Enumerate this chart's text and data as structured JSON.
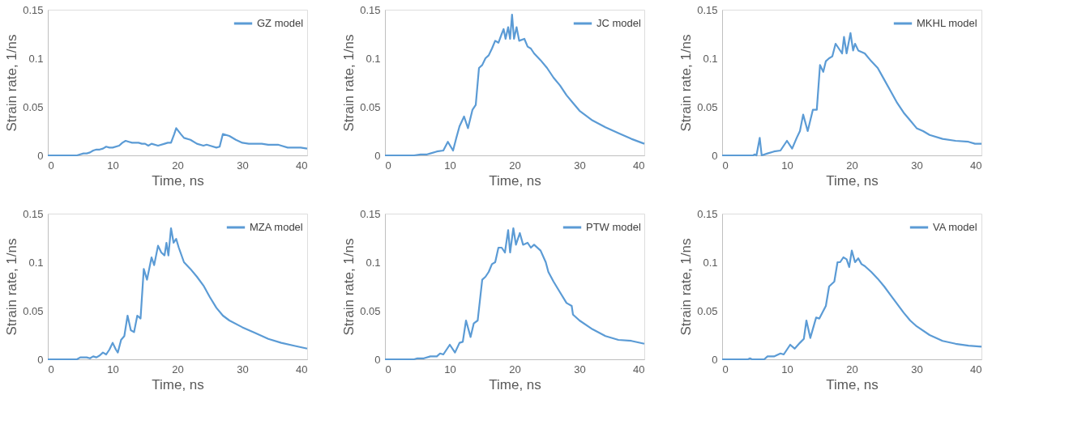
{
  "chart_data": [
    {
      "type": "line",
      "xlabel": "Time, ns",
      "ylabel": "Strain rate, 1/ns",
      "xlim": [
        0,
        40
      ],
      "ylim": [
        0,
        0.15
      ],
      "xticks": [
        0,
        10,
        20,
        30,
        40
      ],
      "yticks": [
        0,
        0.05,
        0.1,
        0.15
      ],
      "legend": "top right",
      "series": [
        {
          "name": "GZ model",
          "color": "#5b9bd5",
          "x": [
            0,
            4.5,
            5,
            5.5,
            6,
            6.5,
            7,
            7.5,
            8,
            8.5,
            9,
            9.5,
            10,
            11,
            11.5,
            12,
            12.5,
            13,
            14,
            14.5,
            15,
            15.5,
            16,
            17,
            18,
            18.5,
            19,
            19.5,
            19.8,
            20.5,
            21,
            22,
            23,
            24,
            24.5,
            25,
            26,
            26.5,
            27,
            28,
            29,
            30,
            31,
            32,
            33,
            34,
            35,
            35.5,
            36,
            37,
            38,
            39,
            40
          ],
          "values": [
            0,
            0,
            0.001,
            0.002,
            0.002,
            0.003,
            0.005,
            0.006,
            0.006,
            0.007,
            0.009,
            0.008,
            0.008,
            0.01,
            0.013,
            0.015,
            0.014,
            0.013,
            0.013,
            0.012,
            0.012,
            0.01,
            0.012,
            0.01,
            0.012,
            0.013,
            0.013,
            0.022,
            0.028,
            0.022,
            0.018,
            0.016,
            0.012,
            0.01,
            0.011,
            0.01,
            0.008,
            0.009,
            0.022,
            0.02,
            0.016,
            0.013,
            0.012,
            0.012,
            0.012,
            0.011,
            0.011,
            0.011,
            0.01,
            0.008,
            0.008,
            0.008,
            0.007
          ]
        }
      ]
    },
    {
      "type": "line",
      "xlabel": "Time, ns",
      "ylabel": "Strain rate, 1/ns",
      "xlim": [
        0,
        40
      ],
      "ylim": [
        0,
        0.15
      ],
      "xticks": [
        0,
        10,
        20,
        30,
        40
      ],
      "yticks": [
        0,
        0.05,
        0.1,
        0.15
      ],
      "legend": "top right",
      "series": [
        {
          "name": "JC model",
          "color": "#5b9bd5",
          "x": [
            0,
            4.5,
            5.5,
            6.5,
            7,
            8,
            9,
            9.7,
            10.5,
            11,
            11.5,
            12.2,
            12.8,
            13.5,
            14,
            14.5,
            15,
            15.5,
            16,
            16.5,
            17,
            17.5,
            18,
            18.3,
            18.6,
            19,
            19.3,
            19.6,
            19.9,
            20.3,
            20.7,
            21.5,
            22,
            22.5,
            23,
            24,
            25,
            26,
            27,
            28,
            29,
            30,
            32,
            34,
            36,
            38,
            40
          ],
          "values": [
            0,
            0,
            0.001,
            0.001,
            0.002,
            0.004,
            0.005,
            0.014,
            0.005,
            0.018,
            0.03,
            0.04,
            0.028,
            0.047,
            0.052,
            0.09,
            0.093,
            0.1,
            0.103,
            0.11,
            0.118,
            0.116,
            0.125,
            0.13,
            0.12,
            0.132,
            0.12,
            0.145,
            0.12,
            0.132,
            0.118,
            0.12,
            0.112,
            0.11,
            0.105,
            0.098,
            0.09,
            0.08,
            0.072,
            0.062,
            0.054,
            0.046,
            0.036,
            0.029,
            0.023,
            0.017,
            0.012
          ]
        }
      ]
    },
    {
      "type": "line",
      "xlabel": "Time, ns",
      "ylabel": "Strain rate, 1/ns",
      "xlim": [
        0,
        40
      ],
      "ylim": [
        0,
        0.15
      ],
      "xticks": [
        0,
        10,
        20,
        30,
        40
      ],
      "yticks": [
        0,
        0.05,
        0.1,
        0.15
      ],
      "legend": "top right",
      "series": [
        {
          "name": "MKHL model",
          "color": "#5b9bd5",
          "x": [
            0,
            4.8,
            5,
            5.3,
            5.8,
            6.1,
            7,
            8,
            9,
            10,
            10.8,
            11.5,
            12,
            12.5,
            13.2,
            14,
            14.6,
            15.1,
            15.6,
            16,
            16.5,
            17,
            17.5,
            18,
            18.5,
            18.8,
            19.2,
            19.8,
            20.2,
            20.5,
            21,
            22,
            23,
            24,
            25,
            26,
            27,
            28,
            29,
            30,
            31,
            32,
            34,
            36,
            38,
            39,
            40
          ],
          "values": [
            0,
            0,
            0.001,
            0,
            0.018,
            0,
            0.002,
            0.004,
            0.005,
            0.015,
            0.007,
            0.018,
            0.025,
            0.042,
            0.025,
            0.047,
            0.047,
            0.093,
            0.086,
            0.097,
            0.1,
            0.102,
            0.115,
            0.11,
            0.105,
            0.122,
            0.105,
            0.126,
            0.108,
            0.115,
            0.108,
            0.105,
            0.097,
            0.09,
            0.078,
            0.066,
            0.054,
            0.044,
            0.036,
            0.028,
            0.025,
            0.021,
            0.017,
            0.015,
            0.014,
            0.012,
            0.012
          ]
        }
      ]
    },
    {
      "type": "line",
      "xlabel": "Time, ns",
      "ylabel": "Strain rate, 1/ns",
      "xlim": [
        0,
        40
      ],
      "ylim": [
        0,
        0.15
      ],
      "xticks": [
        0,
        10,
        20,
        30,
        40
      ],
      "yticks": [
        0,
        0.05,
        0.1,
        0.15
      ],
      "legend": "top right",
      "series": [
        {
          "name": "MZA model",
          "color": "#5b9bd5",
          "x": [
            0,
            4.5,
            5,
            6,
            6.5,
            7,
            7.5,
            8,
            8.5,
            9,
            9.5,
            10,
            10.5,
            10.8,
            11.3,
            11.8,
            12.3,
            12.8,
            13.3,
            13.8,
            14.3,
            14.8,
            15.3,
            16,
            16.4,
            17,
            17.5,
            18,
            18.3,
            18.6,
            19,
            19.4,
            19.8,
            20.2,
            21,
            22,
            23,
            24,
            25,
            26,
            27,
            28,
            30,
            32,
            34,
            36,
            38,
            40
          ],
          "values": [
            0,
            0,
            0.002,
            0.002,
            0.001,
            0.003,
            0.002,
            0.004,
            0.007,
            0.005,
            0.01,
            0.017,
            0.01,
            0.007,
            0.02,
            0.024,
            0.045,
            0.03,
            0.028,
            0.045,
            0.042,
            0.093,
            0.082,
            0.105,
            0.097,
            0.117,
            0.11,
            0.107,
            0.12,
            0.107,
            0.135,
            0.12,
            0.124,
            0.115,
            0.1,
            0.093,
            0.085,
            0.076,
            0.064,
            0.053,
            0.045,
            0.04,
            0.033,
            0.027,
            0.021,
            0.017,
            0.014,
            0.011
          ]
        }
      ]
    },
    {
      "type": "line",
      "xlabel": "Time, ns",
      "ylabel": "Strain rate, 1/ns",
      "xlim": [
        0,
        40
      ],
      "ylim": [
        0,
        0.15
      ],
      "xticks": [
        0,
        10,
        20,
        30,
        40
      ],
      "yticks": [
        0,
        0.05,
        0.1,
        0.15
      ],
      "legend": "top right",
      "series": [
        {
          "name": "PTW model",
          "color": "#5b9bd5",
          "x": [
            0,
            4.5,
            5,
            6,
            7,
            8,
            8.5,
            9,
            10,
            10.8,
            11.5,
            12,
            12.5,
            13.2,
            13.7,
            14.3,
            15,
            15.5,
            16,
            16.5,
            17,
            17.5,
            18,
            18.5,
            19,
            19.3,
            19.8,
            20.2,
            20.8,
            21.3,
            22,
            22.5,
            23,
            24,
            24.8,
            25.2,
            26,
            27,
            28,
            28.8,
            29,
            30,
            32,
            34,
            36,
            38,
            40
          ],
          "values": [
            0,
            0,
            0.001,
            0.001,
            0.003,
            0.003,
            0.006,
            0.005,
            0.015,
            0.007,
            0.017,
            0.018,
            0.04,
            0.023,
            0.037,
            0.04,
            0.082,
            0.085,
            0.09,
            0.098,
            0.1,
            0.115,
            0.115,
            0.11,
            0.133,
            0.11,
            0.135,
            0.118,
            0.13,
            0.118,
            0.12,
            0.115,
            0.118,
            0.112,
            0.1,
            0.09,
            0.08,
            0.069,
            0.058,
            0.055,
            0.046,
            0.04,
            0.031,
            0.024,
            0.02,
            0.019,
            0.016
          ]
        }
      ]
    },
    {
      "type": "line",
      "xlabel": "Time, ns",
      "ylabel": "Strain rate, 1/ns",
      "xlim": [
        0,
        40
      ],
      "ylim": [
        0,
        0.15
      ],
      "xticks": [
        0,
        10,
        20,
        30,
        40
      ],
      "yticks": [
        0,
        0.05,
        0.1,
        0.15
      ],
      "legend": "top right",
      "series": [
        {
          "name": "VA model",
          "color": "#5b9bd5",
          "x": [
            0,
            4,
            4.3,
            4.6,
            6.5,
            7,
            8,
            9,
            9.5,
            10.5,
            11.2,
            12,
            12.6,
            13,
            13.6,
            14.5,
            15,
            16,
            16.5,
            17.3,
            17.8,
            18.2,
            18.7,
            19.2,
            19.6,
            20,
            20.5,
            21,
            21.5,
            22,
            23,
            24,
            25,
            26,
            27,
            28,
            29,
            30,
            32,
            34,
            36,
            38,
            40
          ],
          "values": [
            0,
            0,
            0.001,
            0,
            0,
            0.003,
            0.003,
            0.006,
            0.005,
            0.015,
            0.011,
            0.017,
            0.021,
            0.04,
            0.022,
            0.043,
            0.042,
            0.055,
            0.075,
            0.08,
            0.1,
            0.1,
            0.105,
            0.103,
            0.095,
            0.112,
            0.1,
            0.104,
            0.098,
            0.096,
            0.09,
            0.083,
            0.075,
            0.066,
            0.057,
            0.048,
            0.04,
            0.034,
            0.025,
            0.019,
            0.016,
            0.014,
            0.013
          ]
        }
      ]
    }
  ]
}
